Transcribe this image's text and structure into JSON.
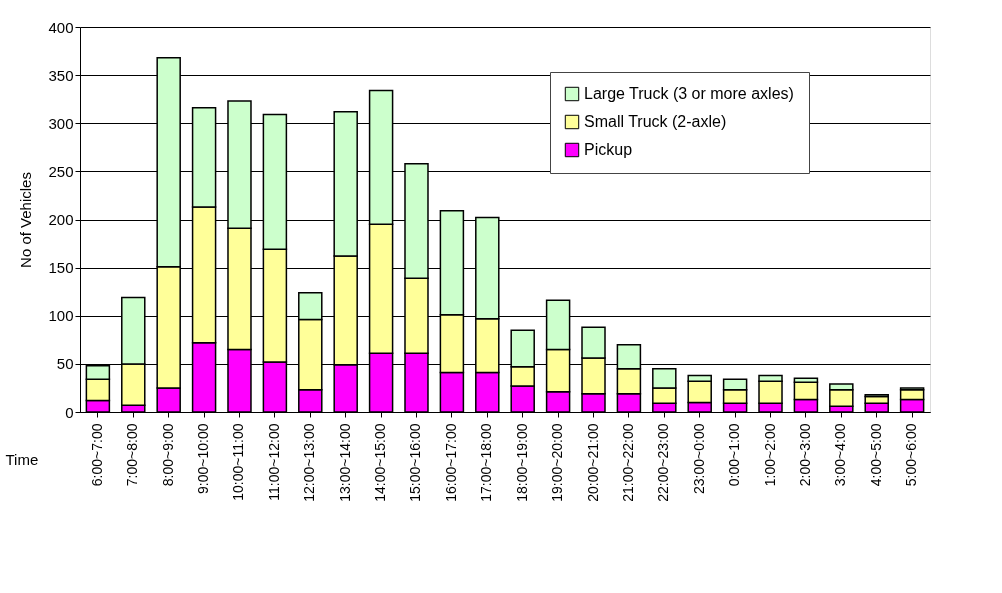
{
  "chart_data": {
    "type": "bar",
    "stacked": true,
    "xlabel": "Time",
    "ylabel": "No of Vehicles",
    "categories": [
      "6:00~7:00",
      "7:00~8:00",
      "8:00~9:00",
      "9:00~10:00",
      "10:00~11:00",
      "11:00~12:00",
      "12:00~13:00",
      "13:00~14:00",
      "14:00~15:00",
      "15:00~16:00",
      "16:00~17:00",
      "17:00~18:00",
      "18:00~19:00",
      "19:00~20:00",
      "20:00~21:00",
      "21:00~22:00",
      "22:00~23:00",
      "23:00~0:00",
      "0:00~1:00",
      "1:00~2:00",
      "2:00~3:00",
      "3:00~4:00",
      "4:00~5:00",
      "5:00~6:00"
    ],
    "series": [
      {
        "name": "Pickup",
        "color": "#ff00ff",
        "values": [
          12,
          7,
          25,
          72,
          65,
          52,
          23,
          49,
          61,
          61,
          41,
          41,
          27,
          21,
          19,
          19,
          9,
          10,
          9,
          9,
          13,
          6,
          9,
          13
        ]
      },
      {
        "name": "Small Truck (2-axle)",
        "color": "#ffff99",
        "values": [
          22,
          43,
          126,
          141,
          126,
          117,
          73,
          113,
          134,
          78,
          60,
          56,
          20,
          44,
          37,
          26,
          16,
          22,
          14,
          23,
          18,
          17,
          7,
          10
        ]
      },
      {
        "name": "Large Truck (3 or more axles)",
        "color": "#ccffcc",
        "values": [
          14,
          69,
          217,
          103,
          132,
          140,
          28,
          150,
          139,
          119,
          108,
          105,
          38,
          51,
          32,
          25,
          20,
          6,
          11,
          6,
          4,
          6,
          2,
          2
        ]
      }
    ],
    "ylim": [
      0,
      400
    ],
    "yticks": [
      0,
      50,
      100,
      150,
      200,
      250,
      300,
      350,
      400
    ],
    "grid": "y",
    "legend": "top right"
  }
}
